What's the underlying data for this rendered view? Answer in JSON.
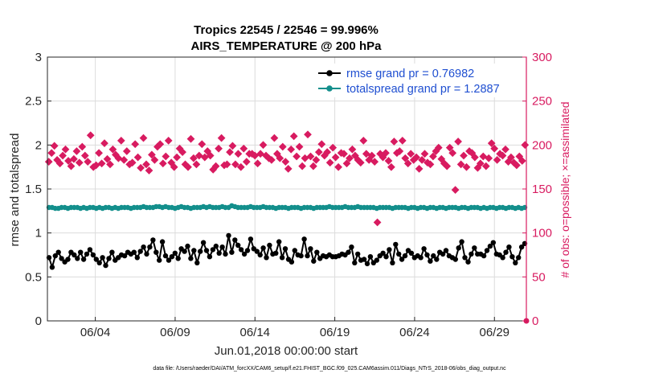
{
  "chart_data": {
    "type": "line",
    "title": "Tropics 22545 / 22546 = 99.996%",
    "subtitle": "AIRS_TEMPERATURE @ 200 hPa",
    "xlabel": "Jun.01,2018 00:00:00 start",
    "ylabel_left": "rmse and totalspread",
    "ylabel_right": "# of obs: o=possible; ×=assimilated",
    "footnote": "data file: /Users/raeder/DAI/ATM_forcXX/CAM6_setup/f.e21.FHIST_BGC.f09_025.CAM6assim.011/Diags_NTrS_2018-06/obs_diag_output.nc",
    "x_range": [
      0,
      30
    ],
    "x_ticks": [
      3,
      8,
      13,
      18,
      23,
      28
    ],
    "x_tick_labels": [
      "06/04",
      "06/09",
      "06/14",
      "06/19",
      "06/24",
      "06/29"
    ],
    "ylim_left": [
      0,
      3
    ],
    "y_ticks_left": [
      "0",
      "0.5",
      "1",
      "1.5",
      "2",
      "2.5",
      "3"
    ],
    "ylim_right": [
      0,
      300
    ],
    "y_ticks_right": [
      "0",
      "50",
      "100",
      "150",
      "200",
      "250",
      "300"
    ],
    "grid": true,
    "legend_position": "top-right",
    "legend": [
      "rmse grand pr = 0.76982",
      "totalspread grand pr = 1.2887"
    ],
    "colors": {
      "rmse": "#000000",
      "spread": "#138f8c",
      "obs": "#d81b60",
      "axis_right": "#d81b60",
      "legend_text": "#1f4fd1"
    },
    "series": [
      {
        "name": "rmse",
        "axis": "left",
        "values": [
          0.72,
          0.61,
          0.74,
          0.78,
          0.71,
          0.67,
          0.7,
          0.78,
          0.75,
          0.71,
          0.78,
          0.7,
          0.76,
          0.81,
          0.75,
          0.7,
          0.66,
          0.72,
          0.63,
          0.71,
          0.78,
          0.69,
          0.72,
          0.75,
          0.74,
          0.78,
          0.76,
          0.78,
          0.72,
          0.79,
          0.84,
          0.76,
          0.84,
          0.92,
          0.78,
          0.69,
          0.9,
          0.74,
          0.69,
          0.73,
          0.77,
          0.71,
          0.82,
          0.79,
          0.85,
          0.71,
          0.8,
          0.66,
          0.79,
          0.89,
          0.8,
          0.73,
          0.81,
          0.85,
          0.77,
          0.84,
          0.76,
          0.97,
          0.78,
          0.92,
          0.86,
          0.81,
          0.76,
          0.8,
          0.93,
          0.82,
          0.79,
          0.75,
          0.83,
          0.72,
          0.86,
          0.76,
          0.77,
          0.9,
          0.72,
          0.82,
          0.7,
          0.67,
          0.8,
          0.75,
          0.74,
          0.93,
          0.74,
          0.82,
          0.68,
          0.78,
          0.71,
          0.74,
          0.73,
          0.75,
          0.73,
          0.73,
          0.74,
          0.76,
          0.75,
          0.78,
          0.84,
          0.66,
          0.76,
          0.69,
          0.7,
          0.65,
          0.73,
          0.66,
          0.69,
          0.74,
          0.77,
          0.73,
          0.81,
          0.66,
          0.87,
          0.76,
          0.7,
          0.74,
          0.8,
          0.77,
          0.72,
          0.74,
          0.72,
          0.82,
          0.75,
          0.68,
          0.74,
          0.7,
          0.78,
          0.76,
          0.8,
          0.74,
          0.72,
          0.7,
          0.83,
          0.9,
          0.72,
          0.67,
          0.76,
          0.83,
          0.76,
          0.76,
          0.74,
          0.8,
          0.85,
          0.89,
          0.76,
          0.75,
          0.72,
          0.78,
          0.84,
          0.73,
          0.66,
          0.72,
          0.84,
          0.88
        ]
      },
      {
        "name": "totalspread",
        "axis": "left",
        "values": [
          1.29,
          1.29,
          1.28,
          1.28,
          1.29,
          1.29,
          1.28,
          1.29,
          1.29,
          1.29,
          1.28,
          1.29,
          1.28,
          1.29,
          1.29,
          1.28,
          1.29,
          1.28,
          1.29,
          1.29,
          1.28,
          1.29,
          1.28,
          1.29,
          1.29,
          1.29,
          1.28,
          1.29,
          1.29,
          1.29,
          1.3,
          1.29,
          1.29,
          1.29,
          1.3,
          1.3,
          1.29,
          1.3,
          1.29,
          1.29,
          1.28,
          1.29,
          1.3,
          1.29,
          1.29,
          1.28,
          1.29,
          1.29,
          1.29,
          1.3,
          1.29,
          1.3,
          1.29,
          1.29,
          1.29,
          1.3,
          1.29,
          1.29,
          1.31,
          1.3,
          1.29,
          1.29,
          1.29,
          1.29,
          1.3,
          1.29,
          1.29,
          1.29,
          1.3,
          1.29,
          1.29,
          1.29,
          1.28,
          1.29,
          1.29,
          1.29,
          1.28,
          1.29,
          1.29,
          1.29,
          1.28,
          1.29,
          1.29,
          1.29,
          1.28,
          1.29,
          1.29,
          1.29,
          1.29,
          1.3,
          1.29,
          1.29,
          1.29,
          1.29,
          1.3,
          1.29,
          1.29,
          1.29,
          1.3,
          1.29,
          1.29,
          1.29,
          1.29,
          1.29,
          1.28,
          1.29,
          1.29,
          1.29,
          1.29,
          1.28,
          1.29,
          1.29,
          1.29,
          1.29,
          1.28,
          1.29,
          1.29,
          1.28,
          1.29,
          1.29,
          1.28,
          1.29,
          1.29,
          1.28,
          1.29,
          1.29,
          1.28,
          1.29,
          1.29,
          1.29,
          1.28,
          1.29,
          1.29,
          1.28,
          1.29,
          1.29,
          1.29,
          1.28,
          1.29,
          1.28,
          1.29,
          1.29,
          1.28,
          1.29,
          1.29,
          1.28,
          1.29,
          1.29,
          1.28,
          1.29,
          1.28,
          1.29
        ]
      },
      {
        "name": "obs assimilated",
        "axis": "right",
        "marker": "×",
        "values": [
          181,
          191,
          199,
          183,
          179,
          188,
          195,
          182,
          176,
          184,
          193,
          180,
          198,
          188,
          181,
          211,
          175,
          177,
          191,
          179,
          202,
          184,
          178,
          195,
          189,
          185,
          205,
          183,
          193,
          178,
          180,
          201,
          186,
          174,
          208,
          178,
          171,
          189,
          183,
          198,
          201,
          179,
          187,
          205,
          180,
          175,
          186,
          196,
          192,
          178,
          175,
          207,
          185,
          178,
          188,
          201,
          186,
          193,
          188,
          172,
          176,
          196,
          208,
          177,
          178,
          192,
          199,
          178,
          190,
          175,
          196,
          181,
          190,
          190,
          188,
          179,
          190,
          200,
          188,
          185,
          183,
          208,
          190,
          185,
          198,
          181,
          173,
          195,
          210,
          187,
          198,
          176,
          185,
          212,
          187,
          176,
          183,
          192,
          201,
          188,
          192,
          180,
          197,
          186,
          175,
          191,
          190,
          179,
          185,
          195,
          188,
          183,
          180,
          205,
          190,
          183,
          188,
          181,
          112,
          190,
          186,
          191,
          182,
          175,
          204,
          191,
          193,
          205,
          185,
          179,
          190,
          183,
          186,
          173,
          183,
          190,
          180,
          178,
          187,
          193,
          197,
          184,
          179,
          176,
          197,
          191,
          149,
          204,
          178,
          188,
          175,
          193,
          191,
          186,
          174,
          179,
          187,
          176,
          185,
          202,
          196,
          183,
          190,
          188,
          195,
          181,
          186,
          180,
          177,
          187,
          182,
          200
        ]
      }
    ]
  }
}
